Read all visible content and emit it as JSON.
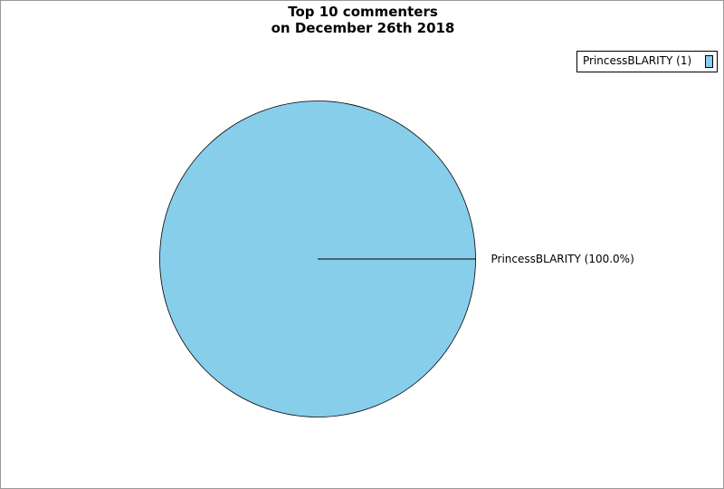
{
  "chart_data": {
    "type": "pie",
    "title_line1": "Top 10 commenters",
    "title_line2": "on December 26th 2018",
    "slices": [
      {
        "name": "PrincessBLARITY",
        "value": 1,
        "percent_label": "PrincessBLARITY (100.0%)",
        "legend_label": "PrincessBLARITY (1)",
        "color": "#87ceeb"
      }
    ],
    "legend_placement": "top-right"
  }
}
